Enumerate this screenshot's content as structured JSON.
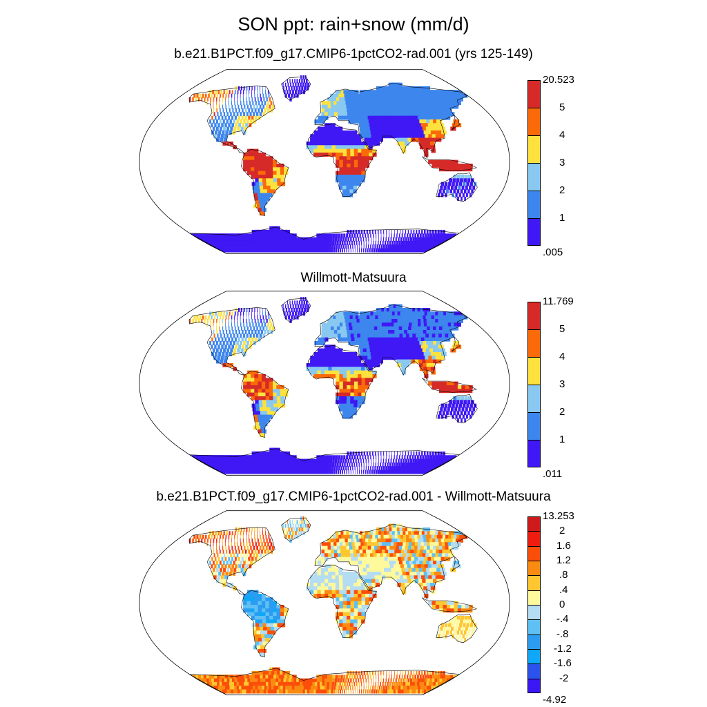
{
  "title": "SON ppt: rain+snow (mm/d)",
  "panels": [
    {
      "title": "b.e21.B1PCT.f09_g17.CMIP6-1pctCO2-rad.001 (yrs 125-149)",
      "colorbar": {
        "max_label": "20.523",
        "min_label": ".005",
        "labels": [
          "5",
          "4",
          "3",
          "2",
          "1"
        ],
        "colors": [
          "#d62a28",
          "#fb6a09",
          "#fde23f",
          "#89c9f1",
          "#3d86ee",
          "#3f18f5"
        ]
      }
    },
    {
      "title": "Willmott-Matsuura",
      "colorbar": {
        "max_label": "11.769",
        "min_label": ".011",
        "labels": [
          "5",
          "4",
          "3",
          "2",
          "1"
        ],
        "colors": [
          "#d62a28",
          "#fb6a09",
          "#fde23f",
          "#89c9f1",
          "#3d86ee",
          "#3f18f5"
        ]
      }
    },
    {
      "title": "b.e21.B1PCT.f09_g17.CMIP6-1pctCO2-rad.001 - Willmott-Matsuura",
      "colorbar": {
        "max_label": "13.253",
        "min_label": "-4.92",
        "labels": [
          "2",
          "1.6",
          "1.2",
          ".8",
          ".4",
          "0",
          "-.4",
          "-.8",
          "-1.2",
          "-1.6",
          "-2"
        ],
        "colors": [
          "#cf1a1c",
          "#ee1d0f",
          "#fb4e0a",
          "#fb8b10",
          "#fec730",
          "#fef99d",
          "#b4dcf2",
          "#5fc0f4",
          "#2c9cf1",
          "#0fa7f7",
          "#2c52ee",
          "#3b17f4"
        ]
      }
    }
  ]
}
